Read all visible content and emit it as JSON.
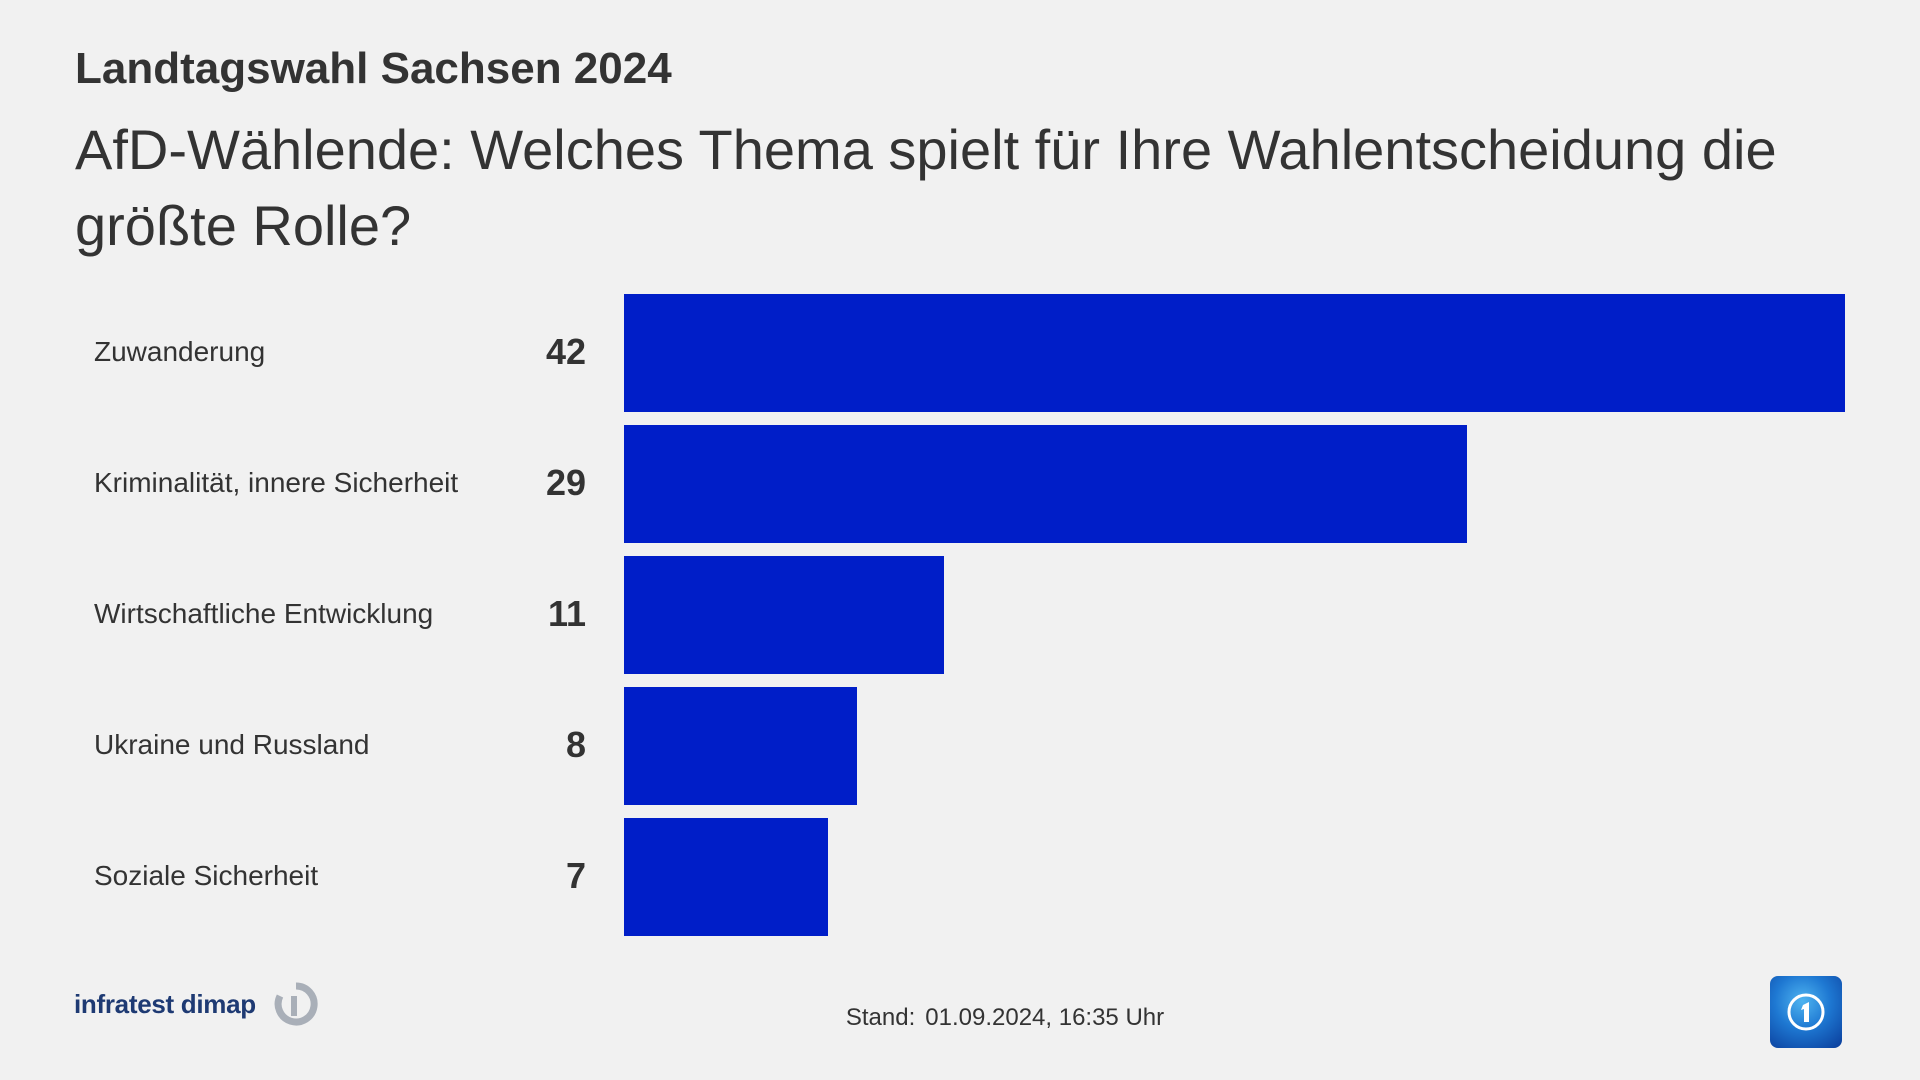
{
  "header": {
    "kicker": "Landtagswahl Sachsen 2024",
    "title": "AfD-Wählende: Welches Thema spielt für Ihre Wahlentscheidung die größte Rolle?"
  },
  "chart_data": {
    "type": "bar",
    "orientation": "horizontal",
    "title": "AfD-Wählende: Welches Thema spielt für Ihre Wahlentscheidung die größte Rolle?",
    "categories": [
      "Zuwanderung",
      "Kriminalität, innere Sicherheit",
      "Wirtschaftliche Entwicklung",
      "Ukraine und Russland",
      "Soziale Sicherheit"
    ],
    "values": [
      42,
      29,
      11,
      8,
      7
    ],
    "value_labels": [
      "42",
      "29",
      "11",
      "8",
      "7"
    ],
    "xlim": [
      0,
      42
    ],
    "grid": false,
    "bar_color": "#001ec8"
  },
  "footer": {
    "source": "infratest dimap",
    "stand_label": "Stand:",
    "stand_value": "01.09.2024, 16:35 Uhr",
    "broadcaster_logo": "ard-1-logo-icon"
  },
  "colors": {
    "background": "#f1f1f1",
    "text": "#333333",
    "bar": "#001ec8",
    "brand": "#1e3a73"
  }
}
